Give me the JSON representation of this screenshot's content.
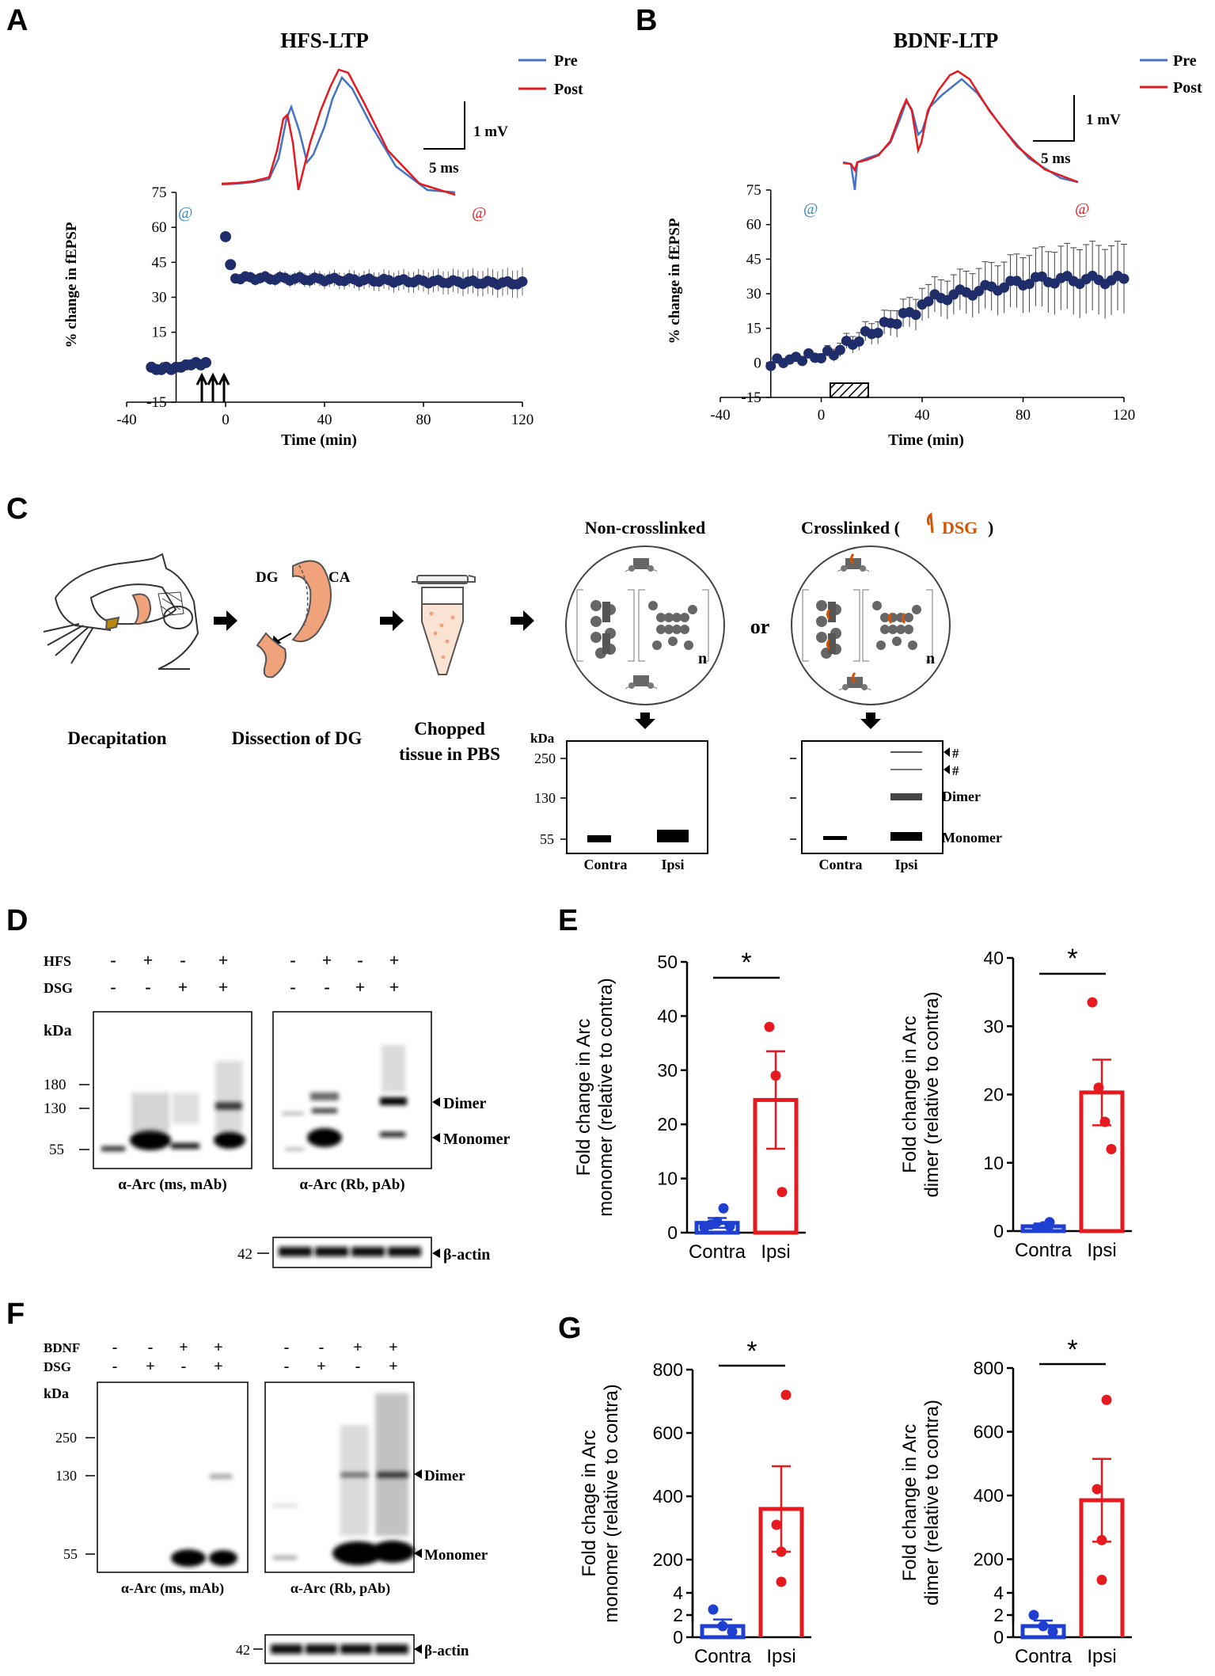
{
  "colors": {
    "blue": "#1f2d6b",
    "pre": "#4472c4",
    "post": "#e5191e",
    "at_blue": "#2e86c1",
    "at_red": "#e5191e",
    "bar_blue": "#1f3fd1",
    "bar_red": "#e5191e",
    "orange": "#f0a27a",
    "dsg": "#d35400"
  },
  "panelA": {
    "letter": "A",
    "title": "HFS-LTP",
    "legend_pre": "Pre",
    "legend_post": "Post",
    "scale_mv": "1 mV",
    "scale_ms": "5 ms",
    "at_marker": "@",
    "chart_data": {
      "type": "scatter",
      "xlabel": "Time (min)",
      "ylabel": "% change in fEPSP",
      "xlim": [
        -40,
        120
      ],
      "ylim": [
        -15,
        75
      ],
      "xticks": [
        "-40",
        "0",
        "40",
        "80",
        "120"
      ],
      "yticks": [
        "75",
        "60",
        "45",
        "30",
        "15",
        "0",
        "-15"
      ],
      "pre_x": [
        -30,
        -28,
        -26,
        -24,
        -22,
        -20,
        -18,
        -16,
        -14,
        -12,
        -10,
        -8
      ],
      "pre_y": [
        0,
        -1,
        -1,
        0,
        -1,
        0,
        0,
        1,
        1,
        2,
        1,
        2
      ],
      "post_y_start": [
        56,
        44
      ],
      "post_mean": 38.5,
      "post_end": 36,
      "arrows": "HFS at -10 min"
    }
  },
  "panelB": {
    "letter": "B",
    "title": "BDNF-LTP",
    "legend_pre": "Pre",
    "legend_post": "Post",
    "scale_mv": "1 mV",
    "scale_ms": "5 ms",
    "at_marker": "@",
    "chart_data": {
      "type": "scatter",
      "xlabel": "Time (min)",
      "ylabel": "% change in fEPSP",
      "xlim": [
        -40,
        120
      ],
      "ylim": [
        -15,
        75
      ],
      "xticks": [
        "-40",
        "0",
        "40",
        "80",
        "120"
      ],
      "yticks": [
        "75",
        "60",
        "45",
        "30",
        "15",
        "0",
        "-15"
      ],
      "bar": "BDNF 0-15 min",
      "x_start": -20,
      "x_end": 120,
      "y_start": -2,
      "y_end": 36
    }
  },
  "panelC": {
    "letter": "C",
    "steps": [
      "Decapitation",
      "Dissection of DG",
      "Chopped",
      "tissue in PBS"
    ],
    "dg": "DG",
    "ca": "CA",
    "noncross": "Non-crosslinked",
    "cross": "Crosslinked (",
    "cross_dsg": "DSG",
    "cross_close": ")",
    "or": "or",
    "n": "n",
    "kda": "kDa",
    "ladder": [
      "250",
      "130",
      "55"
    ],
    "lanes": [
      "Contra",
      "Ipsi"
    ],
    "hash": "#",
    "dimer": "Dimer",
    "monomer": "Monomer"
  },
  "panelD": {
    "letter": "D",
    "row1_label": "HFS",
    "row2_label": "DSG",
    "row1": [
      "-",
      "+",
      "-",
      "+"
    ],
    "row2": [
      "-",
      "-",
      "+",
      "+"
    ],
    "kda": "kDa",
    "ladder": [
      "180",
      "130",
      "55"
    ],
    "blot1": "α-Arc (ms, mAb)",
    "blot2": "α-Arc (Rb, pAb)",
    "dimer": "Dimer",
    "monomer": "Monomer",
    "actin_kda": "42",
    "actin": "β-actin"
  },
  "panelE": {
    "letter": "E",
    "chart_data": [
      {
        "type": "bar",
        "categories": [
          "Contra",
          "Ipsi"
        ],
        "ylabel": "Fold change in Arc monomer (relative to contra)",
        "ylim": [
          0,
          50
        ],
        "yticks": [
          "0",
          "10",
          "20",
          "30",
          "40",
          "50"
        ],
        "means": [
          1.8,
          24.5
        ],
        "sem": [
          0.9,
          9.0
        ],
        "points_contra": [
          1,
          1.5,
          2,
          4.5,
          1.2
        ],
        "points_ipsi": [
          38,
          29,
          7.5
        ],
        "sig": "*"
      },
      {
        "type": "bar",
        "categories": [
          "Contra",
          "Ipsi"
        ],
        "ylabel": "Fold change in Arc dimer (relative to contra)",
        "ylim": [
          0,
          40
        ],
        "yticks": [
          "0",
          "10",
          "20",
          "30",
          "40"
        ],
        "means": [
          0.7,
          20.3
        ],
        "sem": [
          0.4,
          4.8
        ],
        "points_contra": [
          0.5,
          0.7,
          1.3
        ],
        "points_ipsi": [
          33.5,
          21,
          16,
          12
        ],
        "sig": "*"
      }
    ]
  },
  "panelF": {
    "letter": "F",
    "row1_label": "BDNF",
    "row2_label": "DSG",
    "row1": [
      "-",
      "-",
      "+",
      "+"
    ],
    "row2": [
      "-",
      "+",
      "-",
      "+"
    ],
    "kda": "kDa",
    "ladder": [
      "250",
      "130",
      "55"
    ],
    "blot1": "α-Arc (ms, mAb)",
    "blot2": "α-Arc (Rb, pAb)",
    "dimer": "Dimer",
    "monomer": "Monomer",
    "actin_kda": "42",
    "actin": "β-actin"
  },
  "panelG": {
    "letter": "G",
    "chart_data": [
      {
        "type": "bar",
        "categories": [
          "Contra",
          "Ipsi"
        ],
        "ylabel1": "Fold chage in Arc",
        "ylabel2": "monomer (relative to contra)",
        "upper_ticks": [
          "200",
          "400",
          "600",
          "800"
        ],
        "lower_ticks": [
          "0",
          "2",
          "4"
        ],
        "means": [
          1,
          360
        ],
        "sem": [
          0.6,
          135
        ],
        "points_contra": [
          2.5,
          1,
          0.5
        ],
        "points_ipsi": [
          720,
          310,
          225,
          130
        ],
        "sig": "*"
      },
      {
        "type": "bar",
        "categories": [
          "Contra",
          "Ipsi"
        ],
        "ylabel1": "Fold change in Arc",
        "ylabel2": "dimer (relative to contra)",
        "upper_ticks": [
          "200",
          "400",
          "600",
          "800"
        ],
        "lower_ticks": [
          "0",
          "2",
          "4"
        ],
        "means": [
          1,
          385
        ],
        "sem": [
          0.5,
          130
        ],
        "points_contra": [
          2,
          1,
          0.5
        ],
        "points_ipsi": [
          700,
          420,
          260,
          135
        ],
        "sig": "*"
      }
    ]
  }
}
